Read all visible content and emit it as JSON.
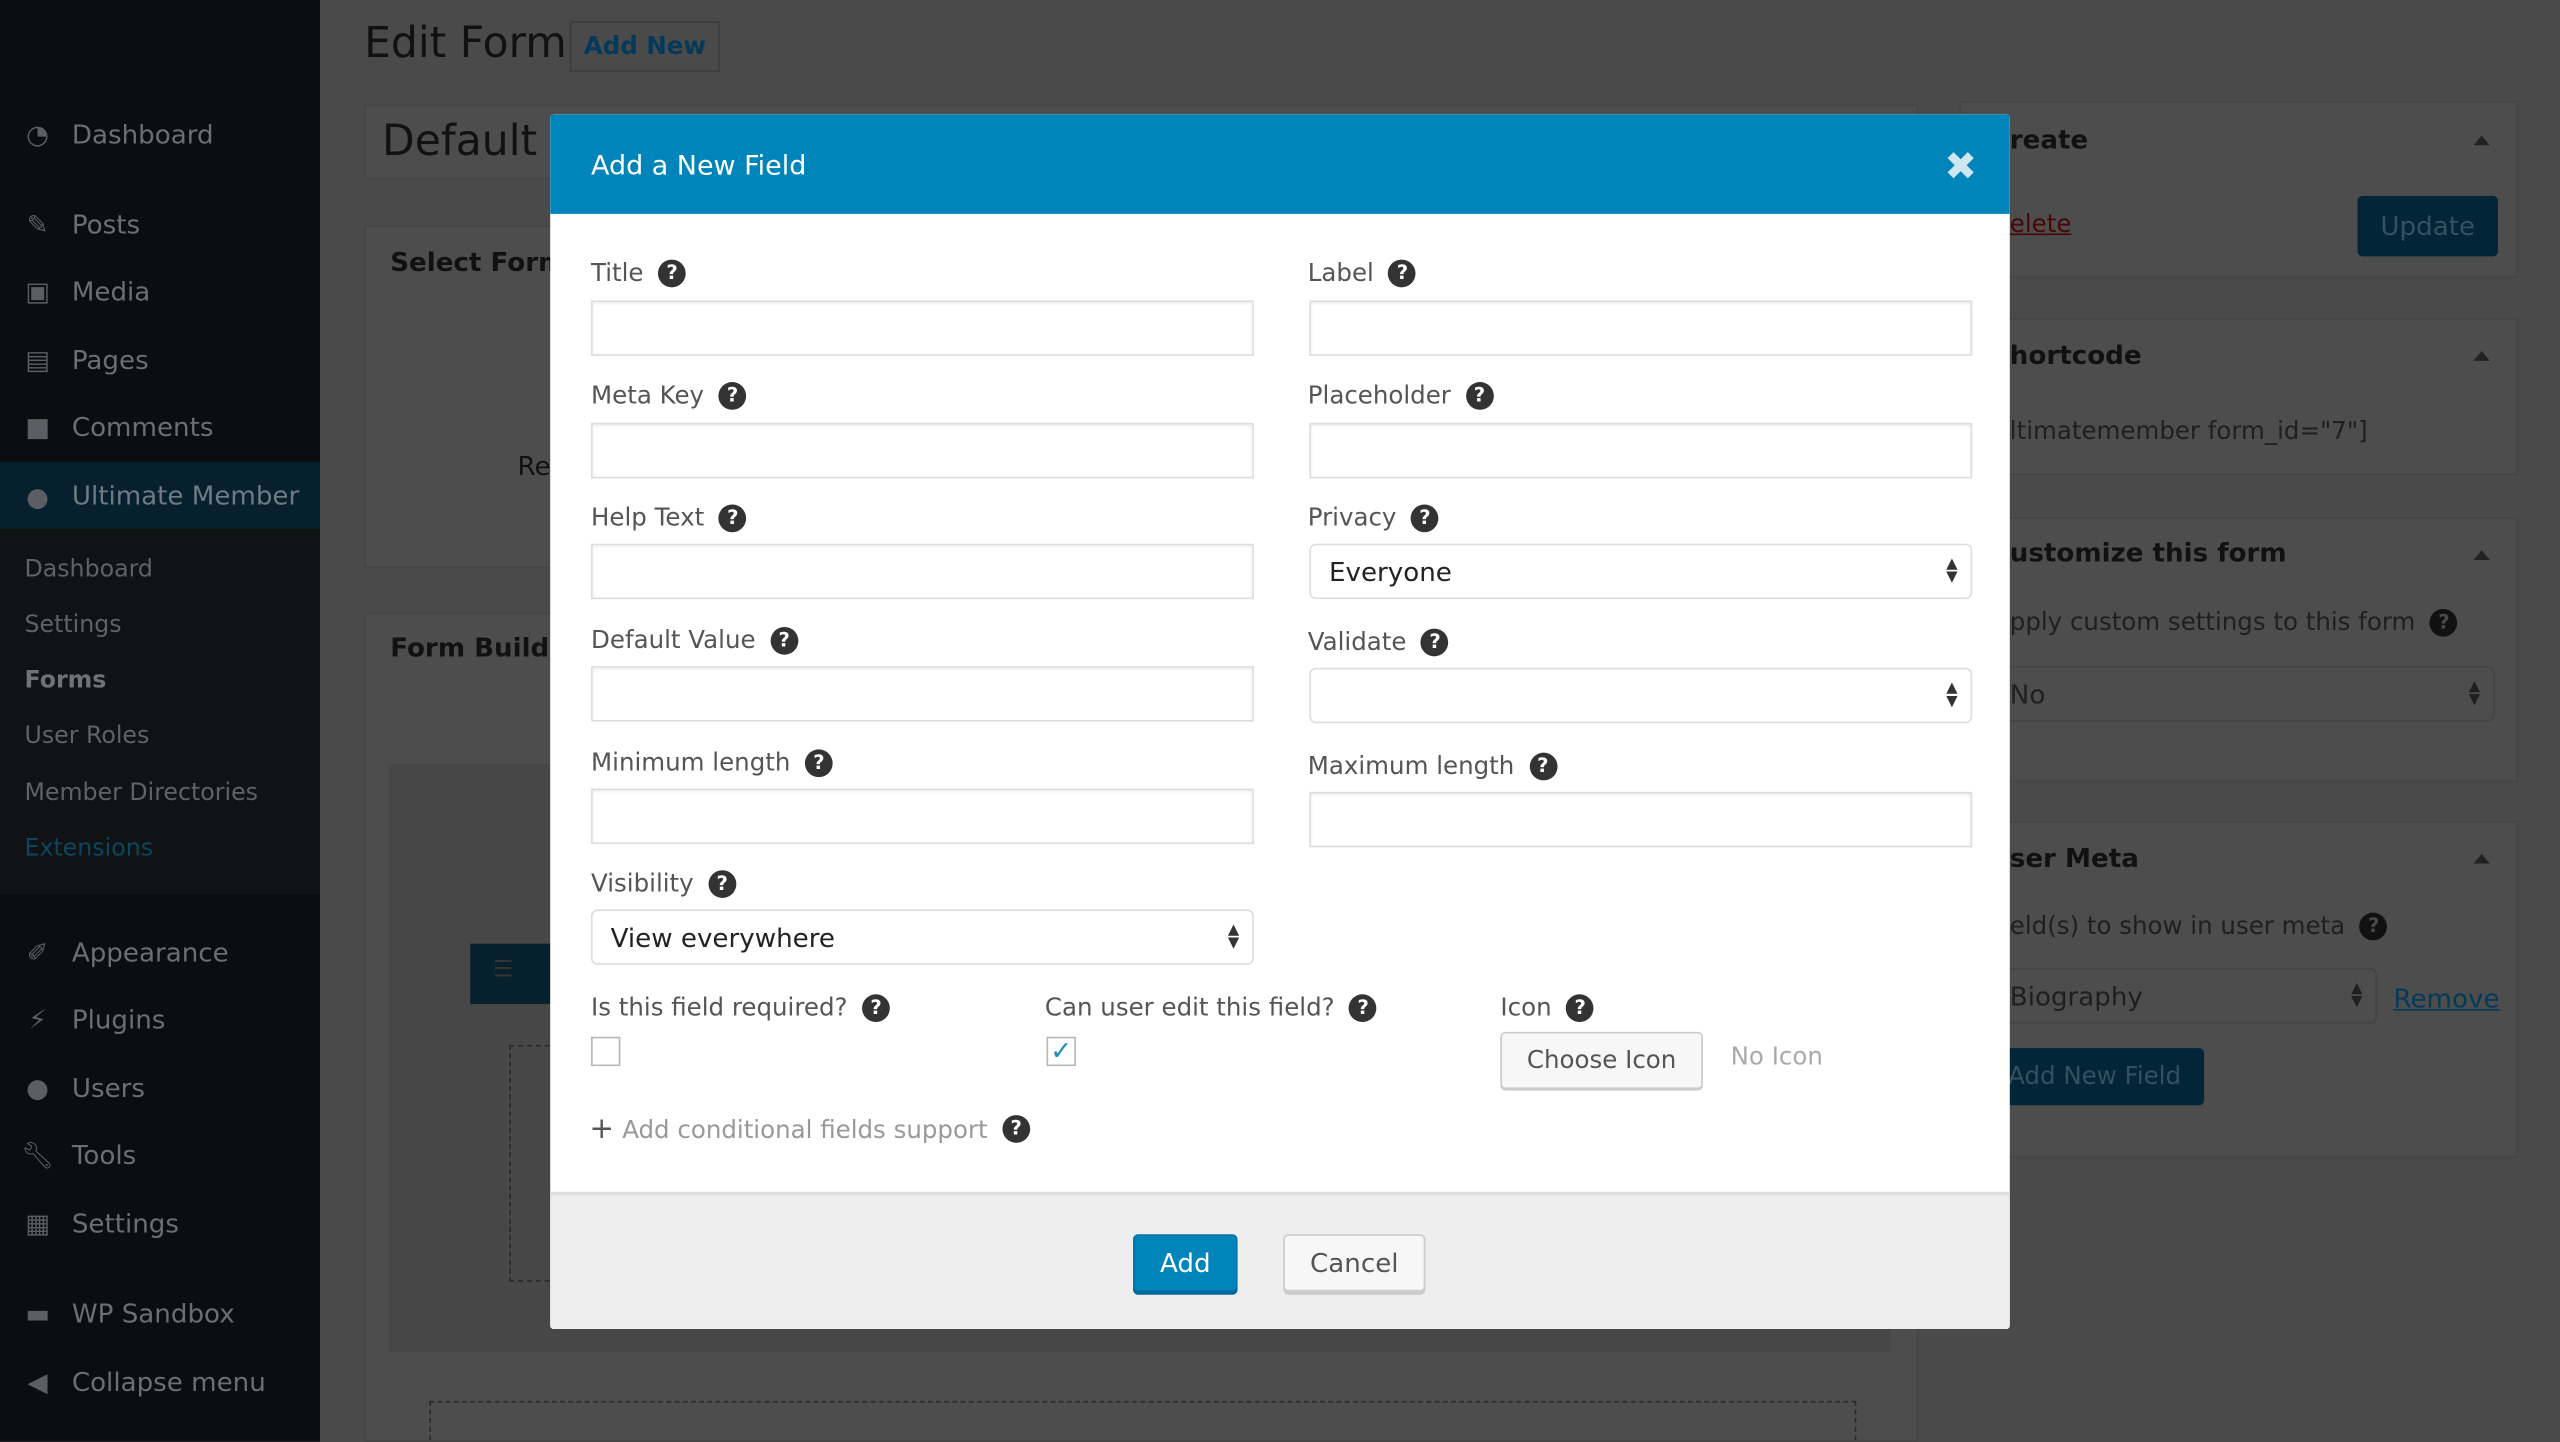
{
  "page": {
    "title": "Edit Form",
    "add_new": "Add New",
    "form_title": "Default P",
    "select_form": "Select Form",
    "re_text": "Re",
    "form_builder": "Form Builde"
  },
  "sidebar": {
    "items": [
      {
        "label": "Dashboard",
        "icon": "dashboard-icon"
      },
      {
        "label": "Posts",
        "icon": "pin-icon"
      },
      {
        "label": "Media",
        "icon": "media-icon"
      },
      {
        "label": "Pages",
        "icon": "pages-icon"
      },
      {
        "label": "Comments",
        "icon": "comment-icon"
      },
      {
        "label": "Ultimate Member",
        "icon": "user-icon",
        "active": true
      },
      {
        "label": "Appearance",
        "icon": "brush-icon"
      },
      {
        "label": "Plugins",
        "icon": "plugin-icon"
      },
      {
        "label": "Users",
        "icon": "users-icon"
      },
      {
        "label": "Tools",
        "icon": "wrench-icon"
      },
      {
        "label": "Settings",
        "icon": "settings-icon"
      },
      {
        "label": "WP Sandbox",
        "icon": "sandbox-icon"
      },
      {
        "label": "Collapse menu",
        "icon": "collapse-icon"
      }
    ],
    "submenu": [
      "Dashboard",
      "Settings",
      "Forms",
      "User Roles",
      "Member Directories",
      "Extensions"
    ]
  },
  "right_panel": {
    "publish_title": "reate",
    "delete": "elete",
    "update": "Update",
    "shortcode_title": "hortcode",
    "shortcode": "ltimatemember form_id=\"7\"]",
    "customize_title": "ustomize this form",
    "customize_label": "pply custom settings to this form",
    "customize_value": "No",
    "usermeta_title": "ser Meta",
    "usermeta_label": "eld(s) to show in user meta",
    "usermeta_value": "Biography",
    "remove": "Remove",
    "add_field": "Add New Field"
  },
  "modal": {
    "title": "Add a New Field",
    "fields": {
      "title": "Title",
      "label": "Label",
      "meta_key": "Meta Key",
      "placeholder": "Placeholder",
      "help_text": "Help Text",
      "privacy": "Privacy",
      "privacy_value": "Everyone",
      "default_value": "Default Value",
      "validate": "Validate",
      "validate_value": "",
      "min_length": "Minimum length",
      "max_length": "Maximum length",
      "visibility": "Visibility",
      "visibility_value": "View everywhere",
      "required": "Is this field required?",
      "required_checked": false,
      "editable": "Can user edit this field?",
      "editable_checked": true,
      "icon": "Icon",
      "choose_icon": "Choose Icon",
      "no_icon": "No Icon",
      "conditional": "Add conditional fields support"
    },
    "add": "Add",
    "cancel": "Cancel",
    "colors": {
      "header": "#0085ba",
      "primary_button": "#0085ba"
    }
  }
}
